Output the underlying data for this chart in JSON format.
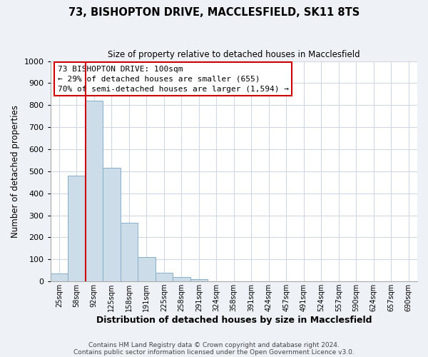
{
  "title": "73, BISHOPTON DRIVE, MACCLESFIELD, SK11 8TS",
  "subtitle": "Size of property relative to detached houses in Macclesfield",
  "xlabel": "Distribution of detached houses by size in Macclesfield",
  "ylabel": "Number of detached properties",
  "bin_labels": [
    "25sqm",
    "58sqm",
    "92sqm",
    "125sqm",
    "158sqm",
    "191sqm",
    "225sqm",
    "258sqm",
    "291sqm",
    "324sqm",
    "358sqm",
    "391sqm",
    "424sqm",
    "457sqm",
    "491sqm",
    "524sqm",
    "557sqm",
    "590sqm",
    "624sqm",
    "657sqm",
    "690sqm"
  ],
  "bar_heights": [
    35,
    480,
    820,
    515,
    265,
    110,
    40,
    20,
    10,
    0,
    0,
    0,
    0,
    0,
    0,
    0,
    0,
    0,
    0,
    0,
    0
  ],
  "bar_color": "#ccdce8",
  "bar_edge_color": "#88aec8",
  "vline_x": 2,
  "vline_color": "#cc0000",
  "annotation_title": "73 BISHOPTON DRIVE: 100sqm",
  "annotation_line1": "← 29% of detached houses are smaller (655)",
  "annotation_line2": "70% of semi-detached houses are larger (1,594) →",
  "annotation_box_edge": "#cc0000",
  "ylim": [
    0,
    1000
  ],
  "yticks": [
    0,
    100,
    200,
    300,
    400,
    500,
    600,
    700,
    800,
    900,
    1000
  ],
  "footer1": "Contains HM Land Registry data © Crown copyright and database right 2024.",
  "footer2": "Contains public sector information licensed under the Open Government Licence v3.0.",
  "bg_color": "#eef2f6",
  "plot_bg_color": "#ffffff",
  "grid_color": "#d0d8e4"
}
